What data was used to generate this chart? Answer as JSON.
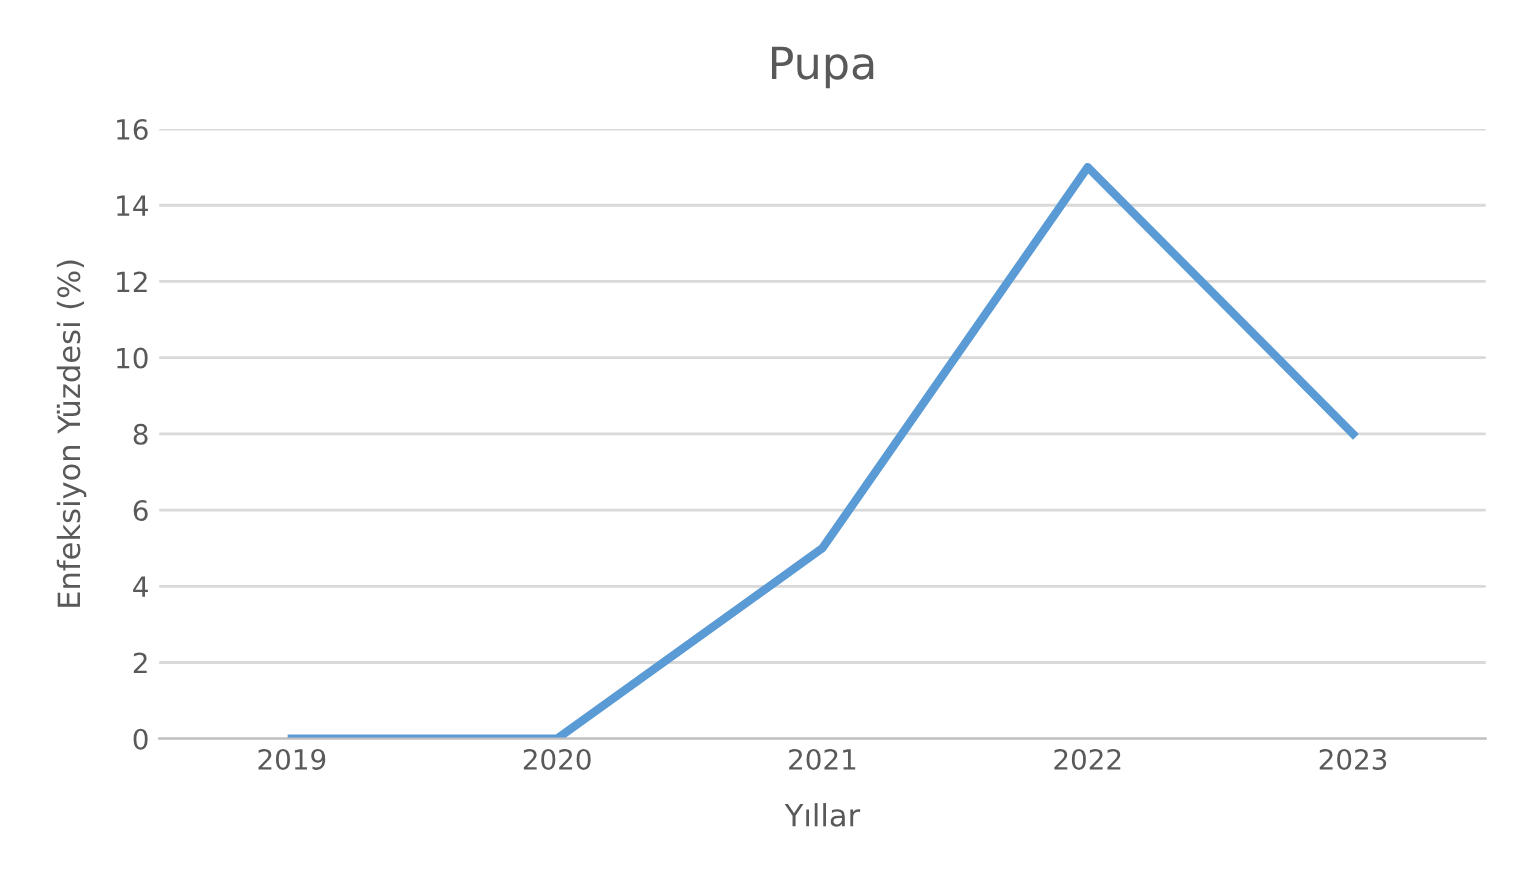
{
  "chart_data": {
    "type": "line",
    "title": "Pupa",
    "xlabel": "Yıllar",
    "ylabel": "Enfeksiyon Yüzdesi (%)",
    "categories": [
      "2019",
      "2020",
      "2021",
      "2022",
      "2023"
    ],
    "series": [
      {
        "color": "#5b9bd5",
        "values": [
          0,
          0,
          5,
          15,
          8
        ]
      }
    ],
    "ylim": [
      0,
      16
    ],
    "yticks": [
      0,
      2,
      4,
      6,
      8,
      10,
      12,
      14,
      16
    ],
    "grid": "y",
    "legend": false,
    "marker": "none",
    "line_style": "solid"
  }
}
